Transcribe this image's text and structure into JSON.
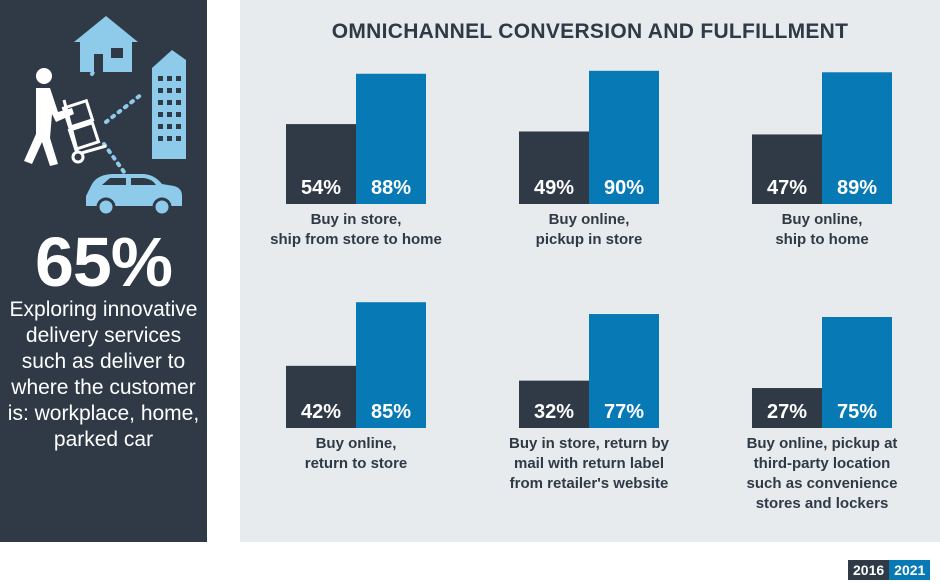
{
  "sidebar": {
    "stat": "65%",
    "caption": "Exploring innovative delivery services such as deliver to where the customer is: workplace, home, parked car",
    "colors": {
      "background": "#2f3a46",
      "illustration": "#ffffff",
      "accent": "#8ecbea"
    },
    "icons": [
      "delivery-person-icon",
      "house-icon",
      "office-building-icon",
      "car-icon"
    ]
  },
  "chart_data": {
    "type": "bar",
    "title": "OMNICHANNEL CONVERSION AND FULFILLMENT",
    "xlabel": "",
    "ylabel": "",
    "ylim": [
      0,
      100
    ],
    "grid": false,
    "legend": {
      "position": "bottom-right",
      "entries": [
        "2016",
        "2021"
      ]
    },
    "series": [
      {
        "name": "2016",
        "color": "#2f3a46",
        "values": [
          54,
          49,
          47,
          42,
          32,
          27
        ]
      },
      {
        "name": "2021",
        "color": "#0779b4",
        "values": [
          88,
          90,
          89,
          85,
          77,
          75
        ]
      }
    ],
    "categories": [
      "Buy in store,\nship from store to home",
      "Buy online,\npickup in store",
      "Buy online,\nship to home",
      "Buy online,\nreturn to store",
      "Buy in store, return by\nmail with return label\nfrom retailer's website",
      "Buy online, pickup at\nthird-party location\nsuch as convenience\nstores and lockers"
    ]
  }
}
